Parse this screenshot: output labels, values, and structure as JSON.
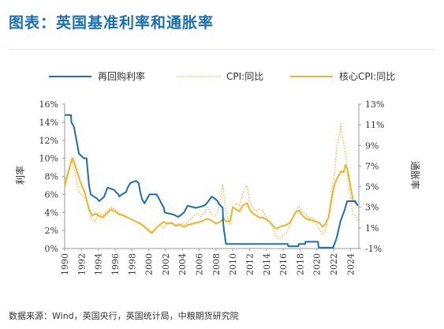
{
  "title": "图表：英国基准利率和通胀率",
  "source": "数据来源：Wind，英国央行，英国统计局，中粮期货研究院",
  "chart_data": {
    "type": "line",
    "xlabel": "",
    "ylabel_left": "利率",
    "ylabel_right": "通胀率",
    "x_range": [
      1990,
      2025
    ],
    "x_ticks": [
      "1990",
      "1992",
      "1994",
      "1996",
      "1998",
      "2000",
      "2002",
      "2004",
      "2006",
      "2008",
      "2010",
      "2012",
      "2014",
      "2016",
      "2018",
      "2020",
      "2022",
      "2024"
    ],
    "y_left": {
      "range": [
        0,
        16
      ],
      "ticks": [
        "0%",
        "2%",
        "4%",
        "6%",
        "8%",
        "10%",
        "12%",
        "14%",
        "16%"
      ]
    },
    "y_right": {
      "range": [
        -1,
        13
      ],
      "ticks": [
        "-1%",
        "1%",
        "3%",
        "5%",
        "7%",
        "9%",
        "11%",
        "13%"
      ]
    },
    "legend_position": "top",
    "series": [
      {
        "name": "再回购利率",
        "axis": "left",
        "color": "#1f6fae",
        "style": "solid",
        "points": [
          [
            1990,
            14.8
          ],
          [
            1990.75,
            14.8
          ],
          [
            1990.8,
            14.0
          ],
          [
            1991.1,
            13.5
          ],
          [
            1991.3,
            12.5
          ],
          [
            1991.5,
            11.5
          ],
          [
            1991.7,
            10.5
          ],
          [
            1992.3,
            10.0
          ],
          [
            1992.6,
            10.0
          ],
          [
            1992.7,
            9.0
          ],
          [
            1992.9,
            7.0
          ],
          [
            1993.1,
            6.0
          ],
          [
            1993.9,
            5.5
          ],
          [
            1994.1,
            5.25
          ],
          [
            1994.7,
            5.75
          ],
          [
            1994.9,
            6.25
          ],
          [
            1995.1,
            6.75
          ],
          [
            1995.9,
            6.5
          ],
          [
            1996.1,
            6.25
          ],
          [
            1996.4,
            6.0
          ],
          [
            1996.5,
            5.75
          ],
          [
            1996.8,
            6.0
          ],
          [
            1997.3,
            6.25
          ],
          [
            1997.5,
            6.75
          ],
          [
            1997.8,
            7.25
          ],
          [
            1998.5,
            7.5
          ],
          [
            1998.8,
            7.25
          ],
          [
            1998.9,
            6.75
          ],
          [
            1999.0,
            6.25
          ],
          [
            1999.2,
            5.5
          ],
          [
            1999.5,
            5.0
          ],
          [
            1999.8,
            5.5
          ],
          [
            2000.1,
            6.0
          ],
          [
            2000.9,
            6.0
          ],
          [
            2001.1,
            5.75
          ],
          [
            2001.5,
            5.0
          ],
          [
            2001.8,
            4.5
          ],
          [
            2001.9,
            4.0
          ],
          [
            2003.0,
            3.75
          ],
          [
            2003.5,
            3.5
          ],
          [
            2003.9,
            3.75
          ],
          [
            2004.2,
            4.0
          ],
          [
            2004.5,
            4.5
          ],
          [
            2004.6,
            4.75
          ],
          [
            2005.6,
            4.5
          ],
          [
            2006.6,
            4.75
          ],
          [
            2006.9,
            5.0
          ],
          [
            2007.1,
            5.25
          ],
          [
            2007.5,
            5.75
          ],
          [
            2007.9,
            5.5
          ],
          [
            2008.2,
            5.25
          ],
          [
            2008.3,
            5.0
          ],
          [
            2008.8,
            4.5
          ],
          [
            2008.85,
            3.0
          ],
          [
            2008.95,
            2.0
          ],
          [
            2009.05,
            1.5
          ],
          [
            2009.1,
            1.0
          ],
          [
            2009.2,
            0.5
          ],
          [
            2016.55,
            0.5
          ],
          [
            2016.6,
            0.25
          ],
          [
            2017.8,
            0.25
          ],
          [
            2017.85,
            0.5
          ],
          [
            2018.6,
            0.5
          ],
          [
            2018.65,
            0.75
          ],
          [
            2020.15,
            0.75
          ],
          [
            2020.2,
            0.25
          ],
          [
            2020.25,
            0.1
          ],
          [
            2021.95,
            0.1
          ],
          [
            2022.0,
            0.25
          ],
          [
            2022.1,
            0.5
          ],
          [
            2022.3,
            1.0
          ],
          [
            2022.5,
            1.75
          ],
          [
            2022.8,
            3.0
          ],
          [
            2023.0,
            3.5
          ],
          [
            2023.3,
            4.25
          ],
          [
            2023.6,
            5.25
          ],
          [
            2024.6,
            5.25
          ],
          [
            2024.7,
            5.0
          ],
          [
            2024.9,
            4.75
          ]
        ]
      },
      {
        "name": "CPI:同比",
        "axis": "right",
        "color": "#f2b23a",
        "style": "dotted",
        "points": [
          [
            1990,
            5.5
          ],
          [
            1990.4,
            6.5
          ],
          [
            1990.8,
            7.6
          ],
          [
            1991.0,
            7.2
          ],
          [
            1991.3,
            6.0
          ],
          [
            1991.6,
            4.6
          ],
          [
            1991.9,
            4.3
          ],
          [
            1992.3,
            4.0
          ],
          [
            1992.6,
            3.6
          ],
          [
            1992.9,
            2.6
          ],
          [
            1993.2,
            1.8
          ],
          [
            1993.6,
            1.6
          ],
          [
            1994.0,
            2.4
          ],
          [
            1994.5,
            2.2
          ],
          [
            1995.0,
            2.6
          ],
          [
            1995.5,
            3.0
          ],
          [
            1996.0,
            2.8
          ],
          [
            1996.5,
            2.4
          ],
          [
            1997.0,
            2.3
          ],
          [
            1997.5,
            2.0
          ],
          [
            1998.0,
            1.8
          ],
          [
            1998.5,
            1.6
          ],
          [
            1999.0,
            1.5
          ],
          [
            1999.5,
            1.2
          ],
          [
            2000.0,
            0.9
          ],
          [
            2000.4,
            0.6
          ],
          [
            2000.8,
            1.0
          ],
          [
            2001.3,
            1.3
          ],
          [
            2001.8,
            1.0
          ],
          [
            2002.2,
            1.5
          ],
          [
            2002.7,
            1.4
          ],
          [
            2003.2,
            1.3
          ],
          [
            2003.7,
            1.4
          ],
          [
            2004.2,
            1.3
          ],
          [
            2004.7,
            1.6
          ],
          [
            2005.2,
            2.0
          ],
          [
            2005.7,
            2.4
          ],
          [
            2006.2,
            2.1
          ],
          [
            2006.7,
            2.6
          ],
          [
            2007.0,
            3.0
          ],
          [
            2007.4,
            2.5
          ],
          [
            2007.8,
            2.1
          ],
          [
            2008.2,
            2.5
          ],
          [
            2008.5,
            3.8
          ],
          [
            2008.8,
            5.2
          ],
          [
            2009.1,
            3.0
          ],
          [
            2009.4,
            2.0
          ],
          [
            2009.7,
            1.3
          ],
          [
            2010.0,
            3.0
          ],
          [
            2010.4,
            3.4
          ],
          [
            2010.8,
            3.2
          ],
          [
            2011.2,
            4.4
          ],
          [
            2011.7,
            5.1
          ],
          [
            2012.0,
            3.6
          ],
          [
            2012.4,
            2.8
          ],
          [
            2012.8,
            2.7
          ],
          [
            2013.2,
            2.8
          ],
          [
            2013.6,
            2.7
          ],
          [
            2014.0,
            2.0
          ],
          [
            2014.4,
            1.6
          ],
          [
            2014.8,
            1.0
          ],
          [
            2015.2,
            0.0
          ],
          [
            2015.6,
            0.0
          ],
          [
            2016.0,
            0.3
          ],
          [
            2016.4,
            0.5
          ],
          [
            2016.8,
            1.2
          ],
          [
            2017.2,
            2.3
          ],
          [
            2017.6,
            2.8
          ],
          [
            2017.9,
            3.1
          ],
          [
            2018.3,
            2.5
          ],
          [
            2018.7,
            2.4
          ],
          [
            2019.1,
            1.9
          ],
          [
            2019.5,
            2.0
          ],
          [
            2019.9,
            1.5
          ],
          [
            2020.3,
            0.8
          ],
          [
            2020.7,
            0.4
          ],
          [
            2021.0,
            0.7
          ],
          [
            2021.4,
            2.1
          ],
          [
            2021.8,
            4.8
          ],
          [
            2022.1,
            6.2
          ],
          [
            2022.4,
            9.0
          ],
          [
            2022.7,
            10.1
          ],
          [
            2022.85,
            11.1
          ],
          [
            2023.0,
            10.1
          ],
          [
            2023.3,
            8.7
          ],
          [
            2023.5,
            7.9
          ],
          [
            2023.8,
            4.6
          ],
          [
            2024.0,
            4.0
          ],
          [
            2024.3,
            2.3
          ],
          [
            2024.6,
            2.2
          ],
          [
            2024.9,
            1.7
          ]
        ]
      },
      {
        "name": "核心CPI:同比",
        "axis": "right",
        "color": "#f0b429",
        "style": "solid",
        "points": [
          [
            1990,
            5.0
          ],
          [
            1990.3,
            6.0
          ],
          [
            1990.6,
            6.9
          ],
          [
            1990.9,
            7.8
          ],
          [
            1991.2,
            7.2
          ],
          [
            1991.5,
            6.4
          ],
          [
            1991.8,
            5.6
          ],
          [
            1992.1,
            5.0
          ],
          [
            1992.4,
            4.4
          ],
          [
            1992.7,
            3.4
          ],
          [
            1993.0,
            2.6
          ],
          [
            1993.3,
            2.2
          ],
          [
            1993.7,
            2.4
          ],
          [
            1994.0,
            2.2
          ],
          [
            1994.5,
            2.0
          ],
          [
            1995.0,
            2.4
          ],
          [
            1995.5,
            2.8
          ],
          [
            1996.0,
            2.6
          ],
          [
            1996.5,
            2.3
          ],
          [
            1997.0,
            2.2
          ],
          [
            1997.5,
            2.0
          ],
          [
            1998.0,
            1.8
          ],
          [
            1998.5,
            1.6
          ],
          [
            1999.0,
            1.4
          ],
          [
            1999.5,
            1.1
          ],
          [
            2000.0,
            0.7
          ],
          [
            2000.4,
            0.5
          ],
          [
            2000.8,
            0.9
          ],
          [
            2001.3,
            1.3
          ],
          [
            2001.8,
            1.6
          ],
          [
            2002.2,
            1.4
          ],
          [
            2002.7,
            1.5
          ],
          [
            2003.2,
            1.2
          ],
          [
            2003.7,
            1.3
          ],
          [
            2004.2,
            1.1
          ],
          [
            2004.7,
            1.3
          ],
          [
            2005.2,
            1.4
          ],
          [
            2005.7,
            1.5
          ],
          [
            2006.2,
            1.6
          ],
          [
            2006.7,
            1.8
          ],
          [
            2007.0,
            1.9
          ],
          [
            2007.5,
            1.7
          ],
          [
            2008.0,
            1.4
          ],
          [
            2008.5,
            1.6
          ],
          [
            2008.9,
            1.9
          ],
          [
            2009.3,
            1.6
          ],
          [
            2009.7,
            1.7
          ],
          [
            2010.0,
            3.0
          ],
          [
            2010.4,
            2.8
          ],
          [
            2010.8,
            2.6
          ],
          [
            2011.2,
            3.2
          ],
          [
            2011.7,
            3.4
          ],
          [
            2012.0,
            2.8
          ],
          [
            2012.4,
            2.4
          ],
          [
            2012.8,
            2.2
          ],
          [
            2013.2,
            2.0
          ],
          [
            2013.6,
            2.0
          ],
          [
            2014.0,
            1.8
          ],
          [
            2014.4,
            1.6
          ],
          [
            2014.8,
            1.2
          ],
          [
            2015.2,
            0.9
          ],
          [
            2015.6,
            1.1
          ],
          [
            2016.0,
            1.2
          ],
          [
            2016.4,
            1.3
          ],
          [
            2016.8,
            1.5
          ],
          [
            2017.2,
            2.1
          ],
          [
            2017.6,
            2.6
          ],
          [
            2017.9,
            2.7
          ],
          [
            2018.3,
            2.2
          ],
          [
            2018.7,
            1.9
          ],
          [
            2019.1,
            1.8
          ],
          [
            2019.5,
            1.7
          ],
          [
            2019.9,
            1.6
          ],
          [
            2020.3,
            1.5
          ],
          [
            2020.7,
            1.1
          ],
          [
            2021.0,
            1.4
          ],
          [
            2021.4,
            2.0
          ],
          [
            2021.8,
            4.0
          ],
          [
            2022.1,
            5.2
          ],
          [
            2022.4,
            5.8
          ],
          [
            2022.7,
            6.2
          ],
          [
            2022.9,
            6.5
          ],
          [
            2023.2,
            6.4
          ],
          [
            2023.4,
            7.1
          ],
          [
            2023.6,
            6.8
          ],
          [
            2023.8,
            6.0
          ],
          [
            2024.0,
            5.1
          ],
          [
            2024.3,
            3.7
          ],
          [
            2024.6,
            3.4
          ],
          [
            2024.9,
            3.3
          ]
        ]
      }
    ]
  }
}
